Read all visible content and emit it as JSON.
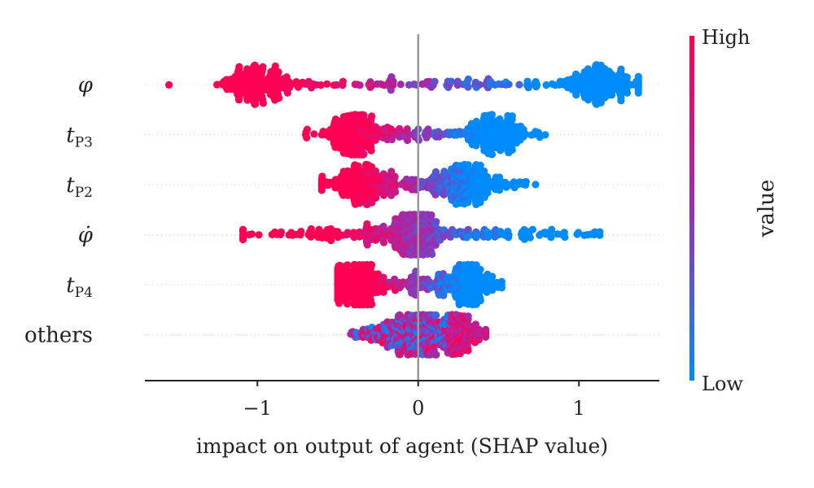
{
  "chart_data": {
    "type": "scatter",
    "subtype": "shap-beeswarm",
    "xlabel": "impact on output of agent (SHAP value)",
    "xlim": [
      -1.7,
      1.5
    ],
    "xticks": [
      -1,
      0,
      1
    ],
    "xtick_labels": [
      "−1",
      "0",
      "1"
    ],
    "colorbar": {
      "title": "value",
      "high_label": "High",
      "low_label": "Low",
      "high_color": "#ff0052",
      "low_color": "#008bfb"
    },
    "features": [
      {
        "name": "φ",
        "label_main": "φ",
        "label_sub": "",
        "plain": false,
        "x_min": -1.55,
        "x_max": 1.37,
        "center": -0.1,
        "density_peaks": [
          {
            "x": -1.0,
            "weight": 3.2,
            "spread": 0.12
          },
          {
            "x": 1.13,
            "weight": 3.0,
            "spread": 0.12
          },
          {
            "x": -0.45,
            "weight": 0.7,
            "spread": 0.3
          },
          {
            "x": 0.45,
            "weight": 0.7,
            "spread": 0.3
          }
        ],
        "color_slope": 1.4,
        "color_offset": 0.0
      },
      {
        "name": "tP3",
        "label_main": "t",
        "label_sub": "P3",
        "plain": false,
        "x_min": -0.7,
        "x_max": 0.79,
        "density_peaks": [
          {
            "x": -0.4,
            "weight": 2.6,
            "spread": 0.1
          },
          {
            "x": 0.45,
            "weight": 2.4,
            "spread": 0.1
          },
          {
            "x": 0.05,
            "weight": 0.7,
            "spread": 0.2
          }
        ],
        "color_slope": 3.0,
        "color_offset": 0.0
      },
      {
        "name": "tP2",
        "label_main": "t",
        "label_sub": "P2",
        "plain": false,
        "x_min": -0.6,
        "x_max": 0.73,
        "density_peaks": [
          {
            "x": -0.35,
            "weight": 2.4,
            "spread": 0.1
          },
          {
            "x": 0.3,
            "weight": 2.2,
            "spread": 0.12
          },
          {
            "x": 0.0,
            "weight": 0.9,
            "spread": 0.15
          }
        ],
        "color_slope": 3.2,
        "color_offset": 0.0
      },
      {
        "name": "φ̇",
        "label_main": "φ̇",
        "label_sub": "",
        "plain": false,
        "x_min": -1.09,
        "x_max": 1.13,
        "density_peaks": [
          {
            "x": -0.02,
            "weight": 2.4,
            "spread": 0.07
          },
          {
            "x": -0.4,
            "weight": 0.9,
            "spread": 0.3
          },
          {
            "x": 0.4,
            "weight": 0.9,
            "spread": 0.3
          }
        ],
        "color_slope": 2.0,
        "color_offset": 0.0
      },
      {
        "name": "tP4",
        "label_main": "t",
        "label_sub": "P4",
        "plain": false,
        "x_min": -0.5,
        "x_max": 0.52,
        "density_peaks": [
          {
            "x": -0.38,
            "weight": 2.2,
            "spread": 0.08
          },
          {
            "x": 0.3,
            "weight": 2.2,
            "spread": 0.07
          },
          {
            "x": 0.0,
            "weight": 0.6,
            "spread": 0.12
          }
        ],
        "color_slope": 4.0,
        "color_offset": 0.0
      },
      {
        "name": "others",
        "label_main": "others",
        "label_sub": "",
        "plain": true,
        "x_min": -0.42,
        "x_max": 0.42,
        "density_peaks": [
          {
            "x": 0.05,
            "weight": 2.0,
            "spread": 0.1
          },
          {
            "x": -0.15,
            "weight": 1.0,
            "spread": 0.1
          },
          {
            "x": 0.25,
            "weight": 0.9,
            "spread": 0.08
          }
        ],
        "color_slope": -1.5,
        "color_offset": 0.0,
        "mixed": true
      }
    ]
  }
}
